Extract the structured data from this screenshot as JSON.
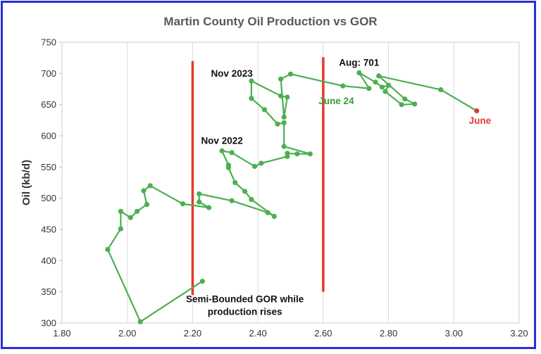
{
  "chart_data": {
    "type": "scatter",
    "title": "Martin County Oil Production vs GOR",
    "xlabel": "",
    "ylabel": "Oil (kb/d)",
    "xlim": [
      1.8,
      3.2
    ],
    "ylim": [
      300,
      750
    ],
    "xticks": [
      "1.80",
      "2.00",
      "2.20",
      "2.40",
      "2.60",
      "2.80",
      "3.00",
      "3.20"
    ],
    "yticks": [
      "300",
      "350",
      "400",
      "450",
      "500",
      "550",
      "600",
      "650",
      "700",
      "750"
    ],
    "grid": "vertical",
    "series": [
      {
        "color": "#4caf50",
        "points": [
          [
            2.23,
            367
          ],
          [
            2.04,
            302
          ],
          [
            1.94,
            418
          ],
          [
            1.98,
            451
          ],
          [
            1.98,
            479
          ],
          [
            2.01,
            469
          ],
          [
            2.03,
            479
          ],
          [
            2.06,
            490
          ],
          [
            2.05,
            512
          ],
          [
            2.07,
            520
          ],
          [
            2.17,
            491
          ],
          [
            2.25,
            485
          ],
          [
            2.22,
            494
          ],
          [
            2.22,
            507
          ],
          [
            2.32,
            496
          ],
          [
            2.43,
            477
          ],
          [
            2.45,
            471
          ],
          [
            2.38,
            498
          ],
          [
            2.36,
            511
          ],
          [
            2.33,
            525
          ],
          [
            2.31,
            549
          ],
          [
            2.31,
            553
          ],
          [
            2.29,
            576
          ],
          [
            2.32,
            573
          ],
          [
            2.39,
            551
          ],
          [
            2.41,
            556
          ],
          [
            2.49,
            567
          ],
          [
            2.49,
            572
          ],
          [
            2.52,
            571
          ],
          [
            2.56,
            571
          ],
          [
            2.48,
            583
          ],
          [
            2.48,
            621
          ],
          [
            2.46,
            619
          ],
          [
            2.42,
            642
          ],
          [
            2.38,
            660
          ],
          [
            2.38,
            688
          ],
          [
            2.47,
            664
          ],
          [
            2.49,
            662
          ],
          [
            2.48,
            630
          ],
          [
            2.47,
            691
          ],
          [
            2.5,
            699
          ],
          [
            2.66,
            680
          ],
          [
            2.74,
            676
          ],
          [
            2.71,
            701
          ],
          [
            2.76,
            686
          ],
          [
            2.78,
            678
          ],
          [
            2.8,
            681
          ],
          [
            2.79,
            671
          ],
          [
            2.84,
            650
          ],
          [
            2.88,
            651
          ],
          [
            2.85,
            659
          ],
          [
            2.77,
            696
          ],
          [
            2.96,
            674
          ],
          [
            3.07,
            640
          ]
        ]
      }
    ],
    "last_point_color": "#e8392c",
    "vlines": [
      {
        "x": 2.2,
        "y_range": [
          345,
          720
        ],
        "color": "#e8392c"
      },
      {
        "x": 2.6,
        "y_range": [
          350,
          726
        ],
        "color": "#e8392c"
      }
    ],
    "annotations": [
      {
        "text": "Nov 2023",
        "x": 2.32,
        "y": 695,
        "color": "#111111"
      },
      {
        "text": "Aug:  701",
        "x": 2.71,
        "y": 712,
        "color": "#111111"
      },
      {
        "text": "June 24",
        "x": 2.64,
        "y": 651,
        "color": "#3d9a38"
      },
      {
        "text": "June",
        "x": 3.08,
        "y": 619,
        "color": "#e8392c"
      },
      {
        "text": "Nov 2022",
        "x": 2.29,
        "y": 587,
        "color": "#111111"
      },
      {
        "text": "Semi-Bounded GOR while",
        "x": 2.36,
        "y": 333,
        "color": "#111111"
      },
      {
        "text": "production rises",
        "x": 2.36,
        "y": 313,
        "color": "#111111"
      }
    ]
  }
}
